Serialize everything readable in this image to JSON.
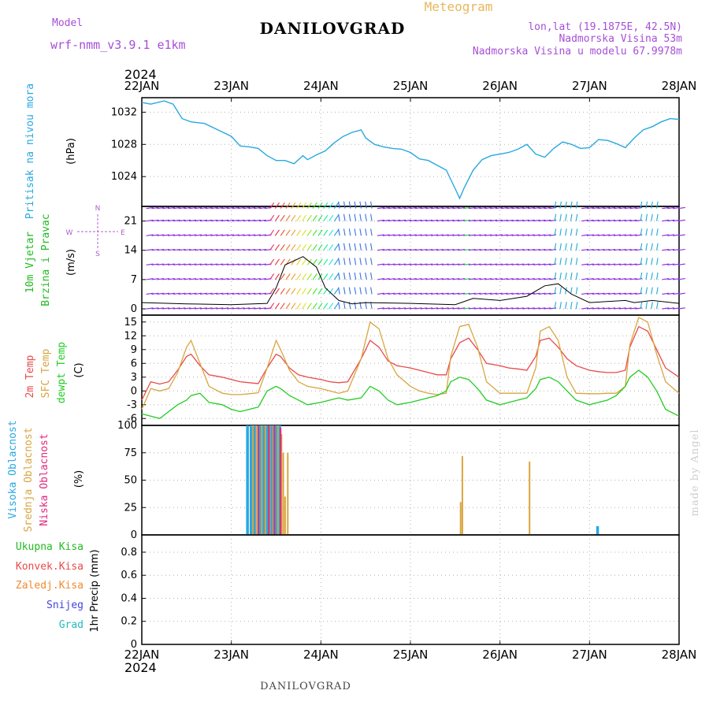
{
  "header": {
    "model_label": "Model",
    "model_name": "wrf-nmm_v3.9.1 e1km",
    "station": "DANILOVGRAD",
    "subtitle": "Meteogram",
    "coords": "lon,lat (19.1875E, 42.5N)",
    "elevation": "Nadmorska Visina 53m",
    "model_elevation": "Nadmorska Visina u modelu 67.9978m",
    "year_top": "2024",
    "year_bottom": "2024",
    "footer_station": "DANILOVGRAD",
    "credit": "made by Angel"
  },
  "colors": {
    "pressure": "#29a8e0",
    "wind_label": "#22bb22",
    "temp": "#e84a4a",
    "sfc_temp": "#d9a540",
    "dewpt": "#22cc22",
    "high_cloud": "#2aa7e0",
    "mid_cloud": "#d9a540",
    "low_cloud": "#e0287f",
    "compass": "#b060d0",
    "header_purple": "#a64fd8",
    "header_orange": "#e6b85c"
  },
  "x_axis": {
    "dates": [
      "22JAN",
      "23JAN",
      "24JAN",
      "25JAN",
      "26JAN",
      "27JAN",
      "28JAN"
    ],
    "range_days": [
      0,
      6
    ]
  },
  "panels": {
    "pressure": {
      "labels": [
        "Pritisak na nivou mora"
      ],
      "unit": "(hPa)",
      "yticks": [
        "1024",
        "1028",
        "1032"
      ]
    },
    "wind": {
      "labels": [
        "10m Vjetar",
        "Brzina i Pravac"
      ],
      "unit": "(m/s)",
      "yticks": [
        "0",
        "7",
        "14",
        "21"
      ],
      "compass": {
        "n": "N",
        "s": "S",
        "e": "E",
        "w": "W"
      }
    },
    "temp": {
      "labels": [
        "2m Temp",
        "SFC Temp",
        "dewpt Temp"
      ],
      "unit": "(C)",
      "yticks": [
        "-6",
        "-3",
        "0",
        "3",
        "6",
        "9",
        "12",
        "15"
      ]
    },
    "cloud": {
      "labels": [
        "Visoka Oblacnost",
        "Srednja Oblacnost",
        "Niska Oblacnost"
      ],
      "unit": "(%)",
      "yticks": [
        "0",
        "25",
        "50",
        "75",
        "100"
      ]
    },
    "precip": {
      "labels": [
        "Ukupna Kisa",
        "Konvek.Kisa",
        "Zaledj.Kisa",
        "Snijeg",
        "Grad"
      ],
      "label_colors": [
        "#22bb22",
        "#e84a4a",
        "#f08a30",
        "#4444dd",
        "#22bbbb"
      ],
      "unit": "1hr Precip (mm)",
      "yticks": [
        "0",
        "0.2",
        "0.4",
        "0.6",
        "0.8"
      ]
    }
  },
  "chart_data": [
    {
      "type": "line",
      "series_name": "Pritisak na nivou mora",
      "unit": "hPa",
      "ylim": [
        1020.3,
        1033.8
      ],
      "x_days": [
        0,
        0.1,
        0.25,
        0.35,
        0.45,
        0.55,
        0.7,
        0.85,
        1.0,
        1.1,
        1.2,
        1.3,
        1.4,
        1.5,
        1.6,
        1.7,
        1.8,
        1.85,
        1.95,
        2.05,
        2.15,
        2.25,
        2.35,
        2.45,
        2.5,
        2.6,
        2.7,
        2.8,
        2.9,
        3.0,
        3.1,
        3.2,
        3.3,
        3.4,
        3.5,
        3.55,
        3.6,
        3.7,
        3.8,
        3.9,
        4.0,
        4.1,
        4.2,
        4.3,
        4.4,
        4.5,
        4.6,
        4.7,
        4.8,
        4.9,
        5.0,
        5.1,
        5.2,
        5.3,
        5.4,
        5.5,
        5.6,
        5.7,
        5.8,
        5.9,
        6.0
      ],
      "values": [
        1033.2,
        1033.0,
        1033.4,
        1033.0,
        1031.2,
        1030.8,
        1030.6,
        1029.8,
        1029.0,
        1027.8,
        1027.7,
        1027.5,
        1026.6,
        1026.0,
        1026.0,
        1025.6,
        1026.6,
        1026.1,
        1026.7,
        1027.2,
        1028.2,
        1029.0,
        1029.5,
        1029.8,
        1028.8,
        1028.0,
        1027.7,
        1027.5,
        1027.4,
        1027.0,
        1026.2,
        1026.0,
        1025.4,
        1024.8,
        1022.5,
        1021.3,
        1022.6,
        1024.8,
        1026.1,
        1026.6,
        1026.8,
        1027.0,
        1027.4,
        1028.0,
        1026.8,
        1026.4,
        1027.5,
        1028.3,
        1028.0,
        1027.5,
        1027.6,
        1028.6,
        1028.5,
        1028.1,
        1027.6,
        1028.8,
        1029.8,
        1030.2,
        1030.8,
        1031.2,
        1031.1
      ]
    },
    {
      "type": "line",
      "title": "10m Vjetar Brzina i Pravac",
      "unit": "m/s",
      "ylim": [
        -1.5,
        24.5
      ],
      "x_days": [
        0,
        0.5,
        1.0,
        1.4,
        1.5,
        1.6,
        1.8,
        1.95,
        2.05,
        2.2,
        2.35,
        2.5,
        3.0,
        3.5,
        3.7,
        4.0,
        4.3,
        4.5,
        4.65,
        4.8,
        5.0,
        5.4,
        5.5,
        5.7,
        6.0
      ],
      "values": [
        1.5,
        1.2,
        1.0,
        1.3,
        5.0,
        10.5,
        12.5,
        10.0,
        5.0,
        2.0,
        1.2,
        1.5,
        1.3,
        1.0,
        2.5,
        2.0,
        3.0,
        5.5,
        6.0,
        3.5,
        1.5,
        2.0,
        1.5,
        2.0,
        1.3
      ]
    },
    {
      "type": "line",
      "unit": "C",
      "ylim": [
        -7.5,
        16.5
      ],
      "x_days": [
        0,
        0.1,
        0.2,
        0.3,
        0.4,
        0.5,
        0.55,
        0.65,
        0.75,
        0.9,
        1.0,
        1.1,
        1.2,
        1.3,
        1.4,
        1.5,
        1.55,
        1.65,
        1.75,
        1.85,
        2.0,
        2.1,
        2.2,
        2.3,
        2.45,
        2.55,
        2.65,
        2.75,
        2.85,
        3.0,
        3.1,
        3.2,
        3.3,
        3.4,
        3.45,
        3.55,
        3.65,
        3.75,
        3.85,
        4.0,
        4.1,
        4.2,
        4.3,
        4.4,
        4.45,
        4.55,
        4.65,
        4.75,
        4.85,
        5.0,
        5.1,
        5.2,
        5.3,
        5.4,
        5.45,
        5.55,
        5.65,
        5.75,
        5.85,
        6.0
      ],
      "series": [
        {
          "name": "2m Temp",
          "values": [
            -2.0,
            2.0,
            1.5,
            2.0,
            4.5,
            7.5,
            8.0,
            5.5,
            3.5,
            3.0,
            2.5,
            2.0,
            1.8,
            1.6,
            5.0,
            8.0,
            7.5,
            5.0,
            3.5,
            3.0,
            2.5,
            2.0,
            1.8,
            2.0,
            7.0,
            11.0,
            9.5,
            6.5,
            5.5,
            5.0,
            4.5,
            4.0,
            3.5,
            3.5,
            7.0,
            10.5,
            11.5,
            9.0,
            6.0,
            5.5,
            5.0,
            4.8,
            4.5,
            7.5,
            11.0,
            11.5,
            9.5,
            7.0,
            5.5,
            4.5,
            4.2,
            4.0,
            4.0,
            4.5,
            9.5,
            14.0,
            13.0,
            9.0,
            5.0,
            3.0
          ]
        },
        {
          "name": "SFC Temp",
          "values": [
            -4.0,
            0.5,
            0.0,
            0.5,
            4.0,
            9.5,
            11.0,
            6.0,
            1.0,
            -0.5,
            -0.8,
            -0.8,
            -0.6,
            -0.4,
            5.0,
            11.0,
            9.0,
            4.5,
            2.0,
            1.0,
            0.5,
            0.0,
            -0.5,
            0.0,
            7.0,
            15.0,
            13.5,
            7.0,
            3.5,
            1.0,
            0.0,
            -0.5,
            -0.8,
            -0.5,
            7.5,
            14.0,
            14.5,
            9.5,
            2.0,
            -0.5,
            -0.5,
            -0.5,
            -0.5,
            5.0,
            13.0,
            14.0,
            11.0,
            3.0,
            -0.5,
            -0.6,
            -0.6,
            -0.5,
            -0.5,
            1.0,
            10.0,
            16.0,
            15.0,
            8.0,
            2.0,
            -0.5
          ]
        },
        {
          "name": "dewpt Temp",
          "values": [
            -5.0,
            -5.5,
            -6.0,
            -4.5,
            -3.0,
            -2.0,
            -1.0,
            -0.5,
            -2.5,
            -3.0,
            -4.0,
            -4.5,
            -4.0,
            -3.5,
            0.0,
            1.0,
            0.5,
            -1.0,
            -2.0,
            -3.0,
            -2.5,
            -2.0,
            -1.5,
            -2.0,
            -1.5,
            1.0,
            0.0,
            -2.0,
            -3.0,
            -2.5,
            -2.0,
            -1.5,
            -1.0,
            0.0,
            2.0,
            3.0,
            2.5,
            0.5,
            -2.0,
            -3.0,
            -2.5,
            -2.0,
            -1.5,
            0.5,
            2.5,
            3.0,
            2.0,
            0.0,
            -2.0,
            -3.0,
            -2.5,
            -2.0,
            -1.0,
            1.0,
            3.0,
            4.5,
            3.0,
            0.0,
            -4.0,
            -5.5
          ]
        }
      ]
    },
    {
      "type": "bar",
      "unit": "%",
      "ylim": [
        0,
        100
      ],
      "series": [
        {
          "name": "Visoka Oblacnost",
          "x_days": [
            1.18,
            1.22,
            1.26,
            1.32,
            1.36,
            1.4,
            1.45,
            1.5,
            1.54,
            5.09
          ],
          "values": [
            100,
            100,
            100,
            100,
            100,
            100,
            100,
            100,
            100,
            8
          ]
        },
        {
          "name": "Srednja Oblacnost",
          "x_days": [
            1.24,
            1.28,
            1.34,
            1.38,
            1.43,
            1.47,
            1.52,
            1.56,
            1.58,
            1.6,
            1.63,
            3.56,
            3.58,
            4.33
          ],
          "values": [
            100,
            100,
            100,
            100,
            100,
            100,
            100,
            92,
            75,
            35,
            75,
            30,
            72,
            67
          ]
        },
        {
          "name": "Niska Oblacnost",
          "x_days": [
            1.3,
            1.42,
            1.48,
            1.55
          ],
          "values": [
            100,
            100,
            100,
            98
          ]
        }
      ]
    },
    {
      "type": "bar",
      "unit": "mm",
      "ylim": [
        0,
        0.95
      ],
      "series": [
        {
          "name": "Ukupna Kisa",
          "values": []
        }
      ]
    }
  ]
}
